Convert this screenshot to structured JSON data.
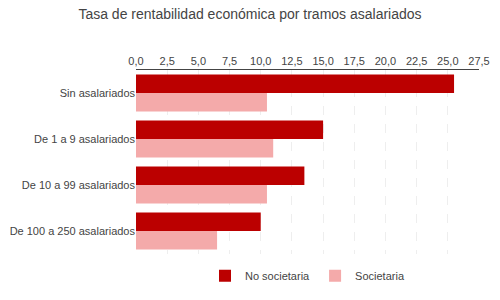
{
  "chart_data": {
    "type": "bar",
    "orientation": "horizontal",
    "title": "Tasa de rentabilidad económica por tramos asalariados",
    "categories": [
      "Sin asalariados",
      "De 1 a 9 asalariados",
      "De 10 a 99 asalariados",
      "De 100 a 250 asalariados"
    ],
    "series": [
      {
        "name": "No societaria",
        "color": "#BB0000",
        "values": [
          25.5,
          15.0,
          13.5,
          10.0
        ]
      },
      {
        "name": "Societaria",
        "color": "#F4AAAA",
        "values": [
          10.5,
          11.0,
          10.5,
          6.5
        ]
      }
    ],
    "xlim": [
      0,
      27.5
    ],
    "xticks": [
      {
        "value": 0.0,
        "label": "0,0"
      },
      {
        "value": 2.5,
        "label": "2,5"
      },
      {
        "value": 5.0,
        "label": "5,0"
      },
      {
        "value": 7.5,
        "label": "7,5"
      },
      {
        "value": 10.0,
        "label": "10,0"
      },
      {
        "value": 12.5,
        "label": "12,5"
      },
      {
        "value": 15.0,
        "label": "15,0"
      },
      {
        "value": 17.5,
        "label": "17,5"
      },
      {
        "value": 20.0,
        "label": "20,0"
      },
      {
        "value": 22.5,
        "label": "22,5"
      },
      {
        "value": 25.0,
        "label": "25,0"
      },
      {
        "value": 27.5,
        "label": "27,5"
      }
    ],
    "grid": true,
    "legend": "bottom"
  }
}
